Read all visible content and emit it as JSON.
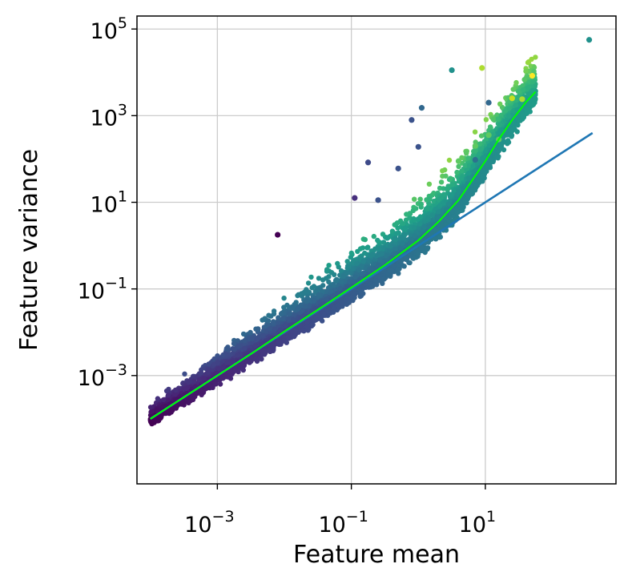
{
  "chart_data": {
    "type": "scatter",
    "title": "",
    "xlabel": "Feature mean",
    "ylabel": "Feature variance",
    "xscale": "log",
    "yscale": "log",
    "xlim_log10": [
      -4.2,
      2.95
    ],
    "ylim_log10": [
      -5.5,
      5.3
    ],
    "grid": true,
    "x_ticks": [
      {
        "exponent": -3,
        "base": "10",
        "exp_text": "−3"
      },
      {
        "exponent": -1,
        "base": "10",
        "exp_text": "−1"
      },
      {
        "exponent": 1,
        "base": "10",
        "exp_text": "1"
      }
    ],
    "y_ticks": [
      {
        "exponent": -3,
        "base": "10",
        "exp_text": "−3"
      },
      {
        "exponent": -1,
        "base": "10",
        "exp_text": "−1"
      },
      {
        "exponent": 1,
        "base": "10",
        "exp_text": "1"
      },
      {
        "exponent": 3,
        "base": "10",
        "exp_text": "3"
      },
      {
        "exponent": 5,
        "base": "10",
        "exp_text": "5"
      }
    ],
    "colormap": [
      "#440154",
      "#3b528b",
      "#21918c",
      "#5ec962",
      "#fde725"
    ],
    "reference_line": {
      "color": "#1f77b4",
      "x_log10": [
        -4.0,
        2.6
      ],
      "y_log10": [
        -4.0,
        2.6
      ]
    },
    "trend_line": {
      "color": "#00ff00",
      "points_log10": [
        [
          -4.0,
          -4.0
        ],
        [
          -3.5,
          -3.5
        ],
        [
          -3.0,
          -3.0
        ],
        [
          -2.5,
          -2.5
        ],
        [
          -2.0,
          -1.98
        ],
        [
          -1.5,
          -1.48
        ],
        [
          -1.0,
          -0.97
        ],
        [
          -0.5,
          -0.45
        ],
        [
          0.0,
          0.12
        ],
        [
          0.3,
          0.55
        ],
        [
          0.6,
          1.05
        ],
        [
          0.8,
          1.5
        ],
        [
          1.0,
          1.95
        ],
        [
          1.2,
          2.45
        ],
        [
          1.4,
          2.9
        ],
        [
          1.6,
          3.3
        ],
        [
          1.75,
          3.55
        ]
      ]
    },
    "scatter_band": {
      "n_points": 5200,
      "x_log10_range": [
        -4.0,
        1.75
      ],
      "note_color_by": "mean"
    },
    "outliers": [
      {
        "x_log10": 2.55,
        "y_log10": 4.75,
        "color": "#21918c"
      },
      {
        "x_log10": 0.5,
        "y_log10": 4.05,
        "color": "#21918c"
      },
      {
        "x_log10": 0.95,
        "y_log10": 4.1,
        "color": "#addc30"
      },
      {
        "x_log10": 1.7,
        "y_log10": 3.92,
        "color": "#fde725"
      },
      {
        "x_log10": 1.05,
        "y_log10": 3.3,
        "color": "#31688e"
      },
      {
        "x_log10": 0.85,
        "y_log10": 2.3,
        "color": "#5ec962"
      },
      {
        "x_log10": 1.4,
        "y_log10": 3.4,
        "color": "#c8e020"
      },
      {
        "x_log10": 1.55,
        "y_log10": 3.38,
        "color": "#addc30"
      },
      {
        "x_log10": 0.05,
        "y_log10": 3.18,
        "color": "#31688e"
      },
      {
        "x_log10": -0.1,
        "y_log10": 2.9,
        "color": "#3b528b"
      },
      {
        "x_log10": -0.3,
        "y_log10": 1.78,
        "color": "#3b528b"
      },
      {
        "x_log10": -0.6,
        "y_log10": 1.05,
        "color": "#3b528b"
      },
      {
        "x_log10": -0.95,
        "y_log10": 1.1,
        "color": "#472f7d"
      },
      {
        "x_log10": -0.75,
        "y_log10": 1.92,
        "color": "#3e4a89"
      },
      {
        "x_log10": 0.0,
        "y_log10": 2.28,
        "color": "#3b528b"
      },
      {
        "x_log10": -2.1,
        "y_log10": 0.25,
        "color": "#440154"
      },
      {
        "x_log10": 0.85,
        "y_log10": 1.98,
        "color": "#2c728e"
      },
      {
        "x_log10": 0.6,
        "y_log10": 1.95,
        "color": "#5ec962"
      },
      {
        "x_log10": 1.05,
        "y_log10": 2.55,
        "color": "#5ec962"
      },
      {
        "x_log10": 1.2,
        "y_log10": 2.45,
        "color": "#5ec962"
      }
    ]
  }
}
